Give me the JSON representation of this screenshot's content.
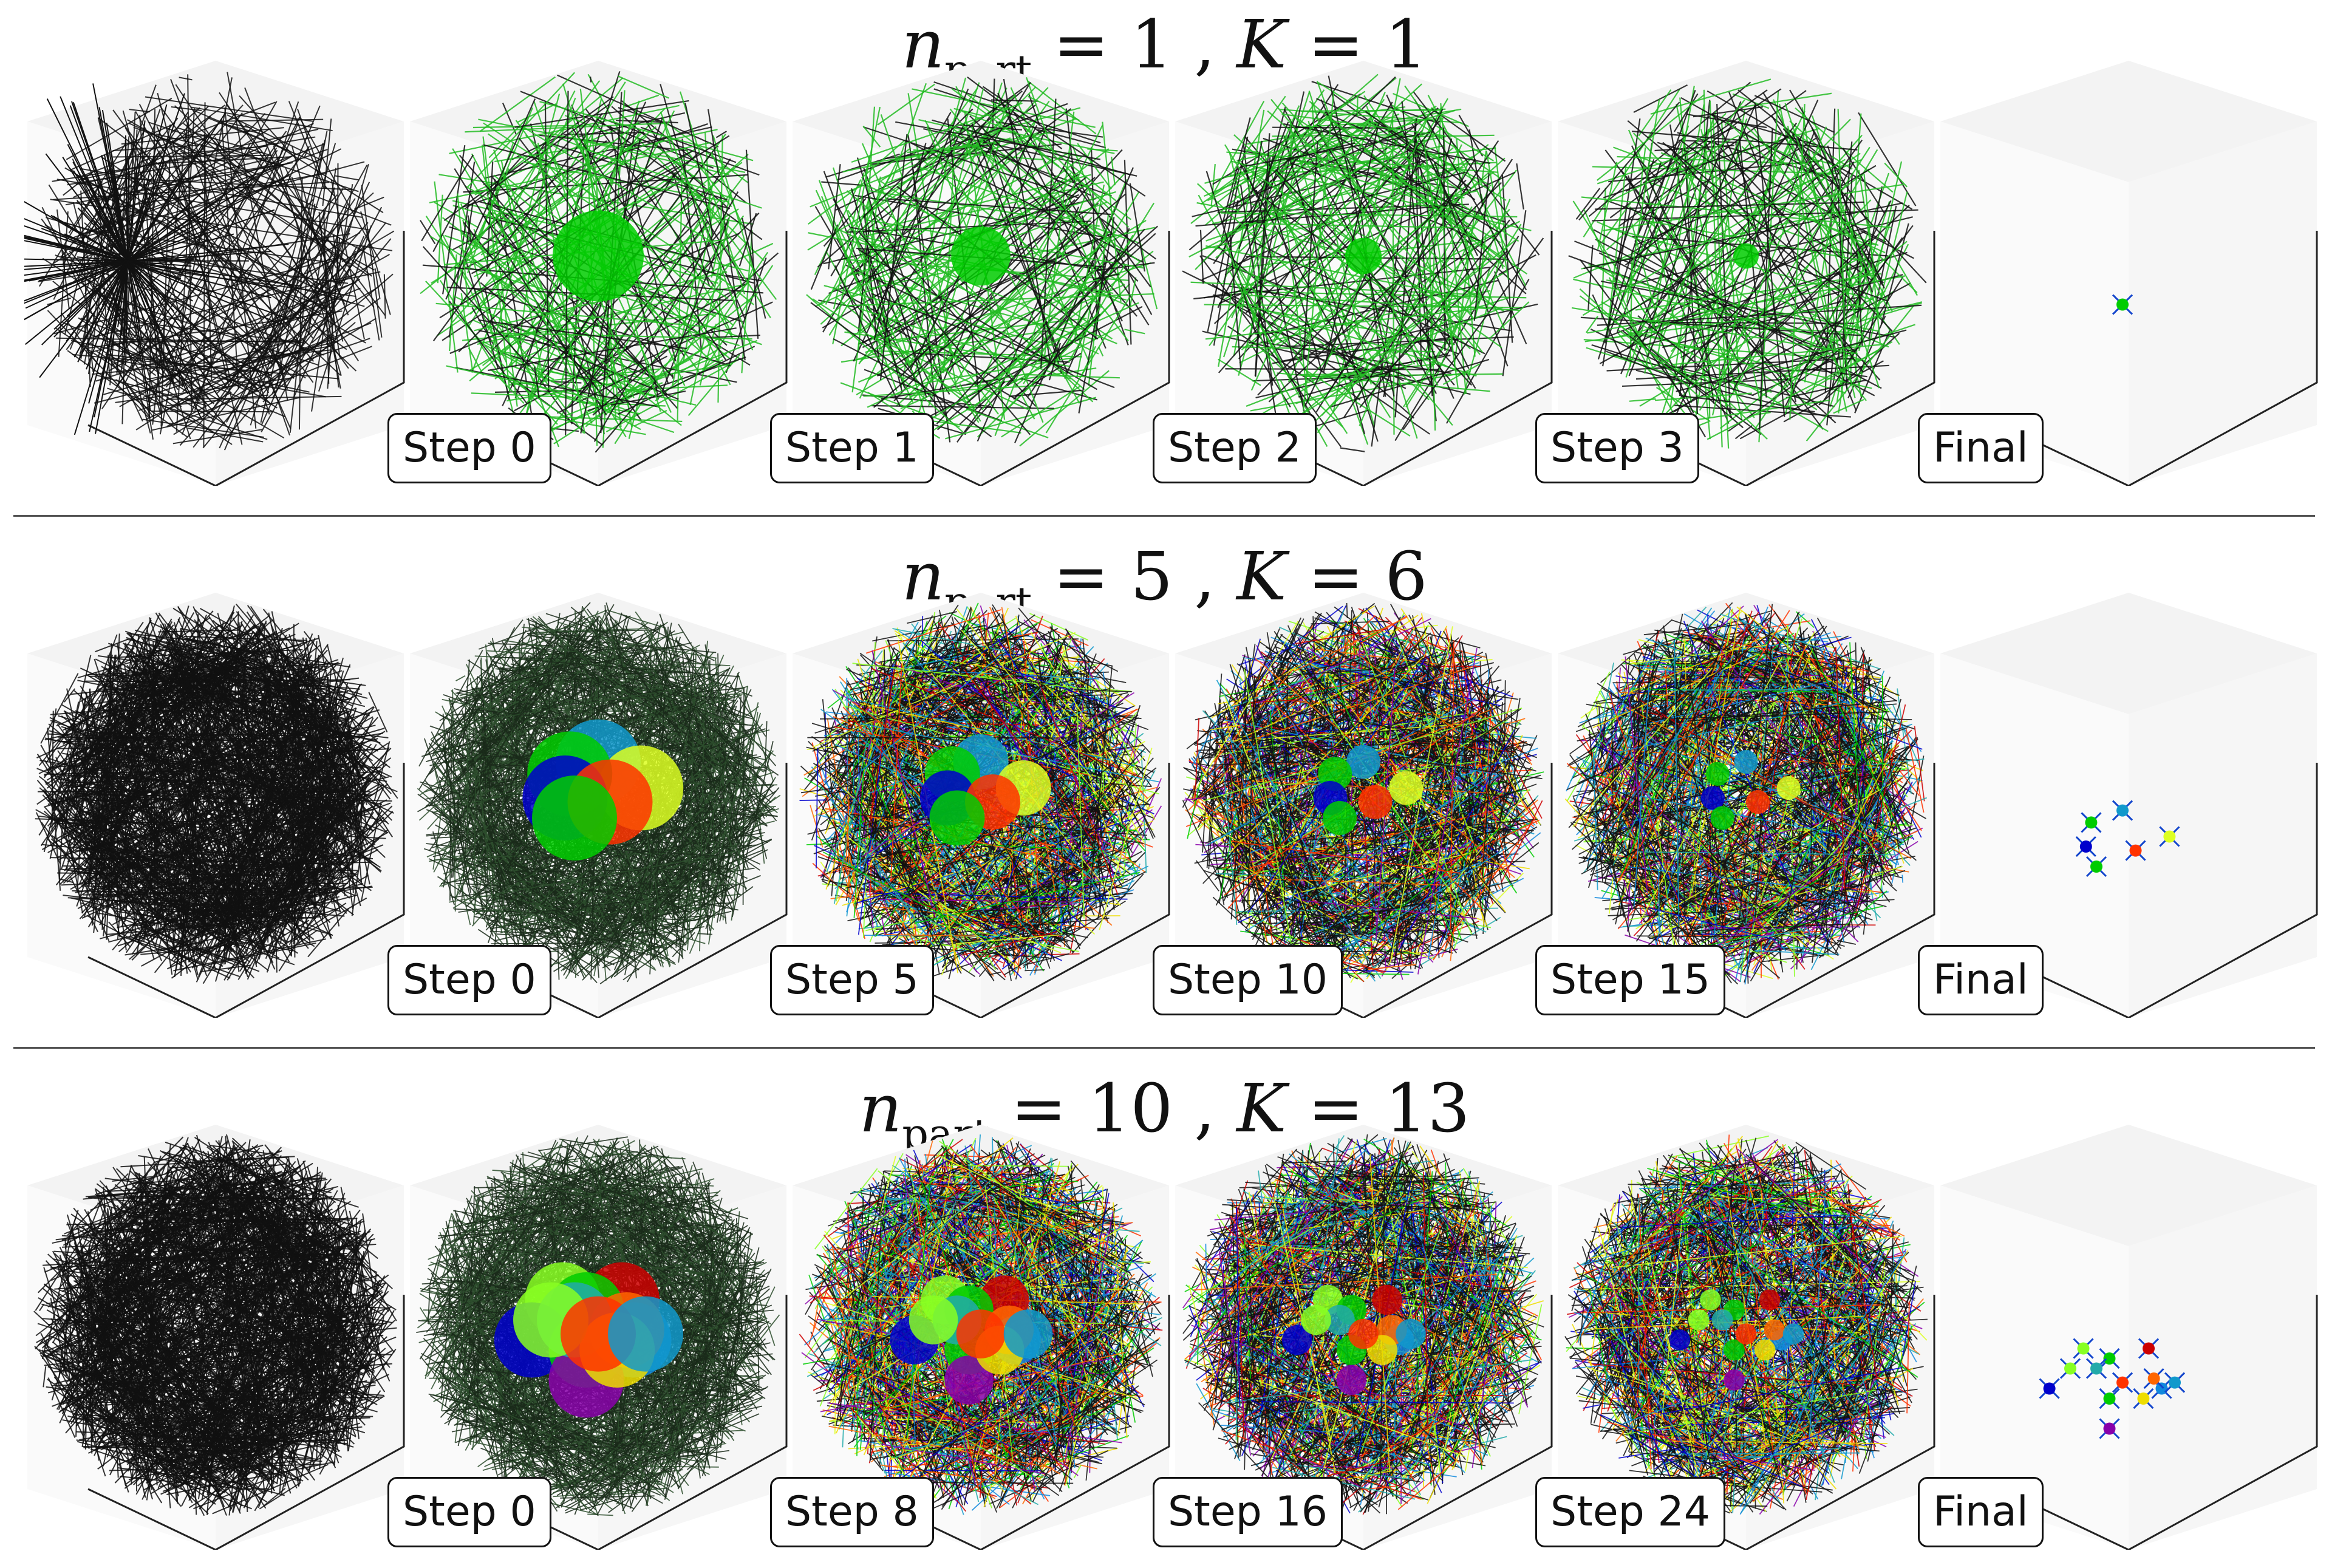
{
  "rows": [
    {
      "title": {
        "var": "n",
        "sub": "part",
        "eq1": "= 1 ,",
        "kvar": "K",
        "eq2": "= 1"
      },
      "panels": [
        {
          "label": ""
        },
        {
          "label": "Step 0"
        },
        {
          "label": "Step 1"
        },
        {
          "label": "Step 2"
        },
        {
          "label": "Step 3"
        },
        {
          "label": "Final"
        }
      ]
    },
    {
      "title": {
        "var": "n",
        "sub": "part",
        "eq1": "= 5 ,",
        "kvar": "K",
        "eq2": "= 6"
      },
      "panels": [
        {
          "label": ""
        },
        {
          "label": "Step 0"
        },
        {
          "label": "Step 5"
        },
        {
          "label": "Step 10"
        },
        {
          "label": "Step 15"
        },
        {
          "label": "Final"
        }
      ]
    },
    {
      "title": {
        "var": "n",
        "sub": "part",
        "eq1": "= 10 ,",
        "kvar": "K",
        "eq2": "= 13"
      },
      "panels": [
        {
          "label": ""
        },
        {
          "label": "Step 0"
        },
        {
          "label": "Step 8"
        },
        {
          "label": "Step 16"
        },
        {
          "label": "Step 24"
        },
        {
          "label": "Final"
        }
      ]
    }
  ],
  "colors": {
    "lines_black": "#111111",
    "lines_green": "#22bb22",
    "cluster_palette": [
      "#00cc00",
      "#0000cc",
      "#ff3300",
      "#ddff22",
      "#1199cc",
      "#cc0000",
      "#88ff22",
      "#1188dd",
      "#8800aa",
      "#ff6600",
      "#22aaaa",
      "#eedd00"
    ]
  }
}
